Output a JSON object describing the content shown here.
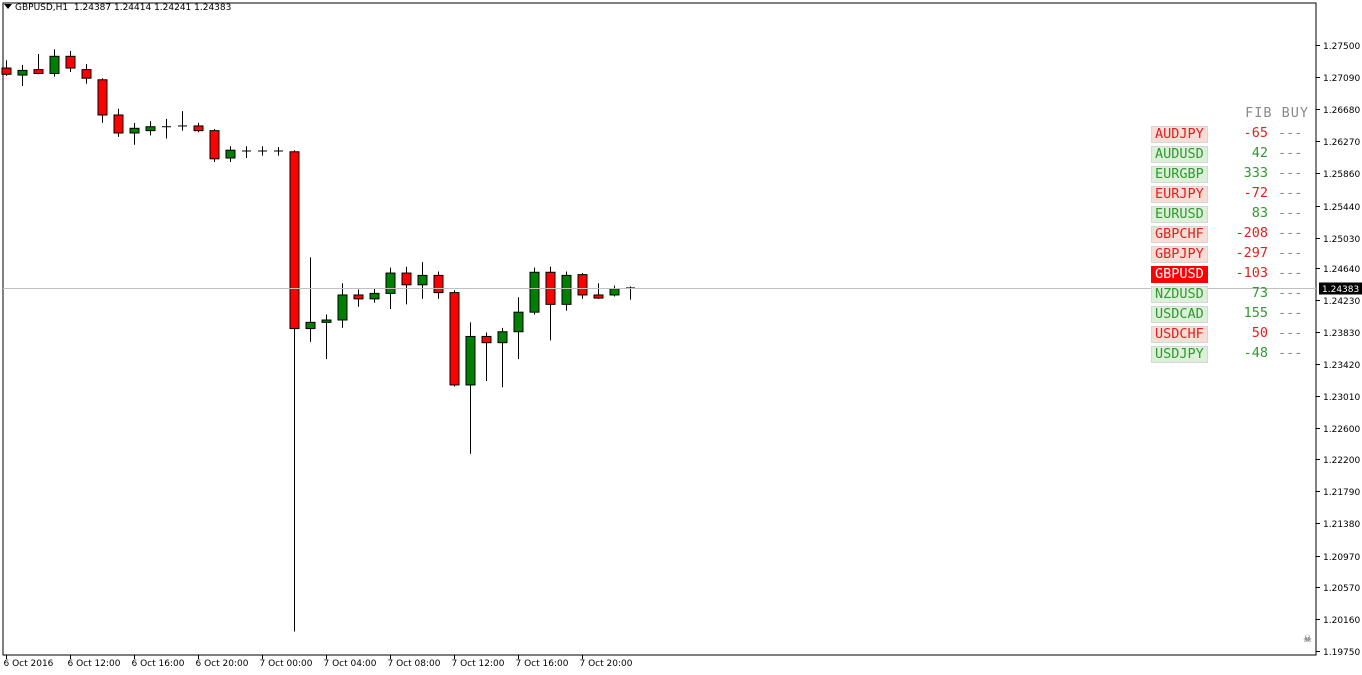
{
  "header": {
    "symbol_tf": "GBPUSD,H1",
    "ohlc": "1.24387 1.24414 1.24241 1.24383"
  },
  "panel": {
    "title": "FIB BUY",
    "rows": [
      {
        "symbol": "AUDJPY",
        "value": "-65",
        "dash": "---",
        "state": "dn"
      },
      {
        "symbol": "AUDUSD",
        "value": "42",
        "dash": "---",
        "state": "up"
      },
      {
        "symbol": "EURGBP",
        "value": "333",
        "dash": "---",
        "state": "up"
      },
      {
        "symbol": "EURJPY",
        "value": "-72",
        "dash": "---",
        "state": "dn"
      },
      {
        "symbol": "EURUSD",
        "value": "83",
        "dash": "---",
        "state": "up"
      },
      {
        "symbol": "GBPCHF",
        "value": "-208",
        "dash": "---",
        "state": "dn"
      },
      {
        "symbol": "GBPJPY",
        "value": "-297",
        "dash": "---",
        "state": "dn"
      },
      {
        "symbol": "GBPUSD",
        "value": "-103",
        "dash": "---",
        "state": "sel"
      },
      {
        "symbol": "NZDUSD",
        "value": "73",
        "dash": "---",
        "state": "up"
      },
      {
        "symbol": "USDCAD",
        "value": "155",
        "dash": "---",
        "state": "up"
      },
      {
        "symbol": "USDCHF",
        "value": "50",
        "dash": "---",
        "state": "dn"
      },
      {
        "symbol": "USDJPY",
        "value": "-48",
        "dash": "---",
        "state": "up"
      }
    ]
  },
  "chart_data": {
    "type": "candlestick",
    "symbol": "GBPUSD",
    "timeframe": "H1",
    "ylim": [
      1.1975,
      1.2775
    ],
    "yticks": [
      "1.27500",
      "1.27090",
      "1.26680",
      "1.26270",
      "1.25860",
      "1.25440",
      "1.25030",
      "1.24640",
      "1.24230",
      "1.23830",
      "1.23420",
      "1.23010",
      "1.22600",
      "1.22200",
      "1.21790",
      "1.21380",
      "1.20970",
      "1.20570",
      "1.20160",
      "1.19750"
    ],
    "current_price": "1.24383",
    "current_price_value": 1.24383,
    "xticks": [
      {
        "label": "6 Oct 2016",
        "bar": 0
      },
      {
        "label": "6 Oct 12:00",
        "bar": 4
      },
      {
        "label": "6 Oct 16:00",
        "bar": 8
      },
      {
        "label": "6 Oct 20:00",
        "bar": 12
      },
      {
        "label": "7 Oct 00:00",
        "bar": 16
      },
      {
        "label": "7 Oct 04:00",
        "bar": 20
      },
      {
        "label": "7 Oct 08:00",
        "bar": 24
      },
      {
        "label": "7 Oct 12:00",
        "bar": 28
      },
      {
        "label": "7 Oct 16:00",
        "bar": 32
      },
      {
        "label": "7 Oct 20:00",
        "bar": 36
      }
    ],
    "bull_color": "#008000",
    "bear_color": "#ff0000",
    "candles": [
      {
        "o": 1.272,
        "h": 1.273,
        "l": 1.271,
        "c": 1.2712
      },
      {
        "o": 1.2711,
        "h": 1.2724,
        "l": 1.2697,
        "c": 1.2717
      },
      {
        "o": 1.2718,
        "h": 1.2738,
        "l": 1.2712,
        "c": 1.2713
      },
      {
        "o": 1.2713,
        "h": 1.2744,
        "l": 1.2709,
        "c": 1.2735
      },
      {
        "o": 1.2735,
        "h": 1.2742,
        "l": 1.2715,
        "c": 1.272
      },
      {
        "o": 1.2718,
        "h": 1.2725,
        "l": 1.27,
        "c": 1.2707
      },
      {
        "o": 1.2705,
        "h": 1.2707,
        "l": 1.265,
        "c": 1.266
      },
      {
        "o": 1.266,
        "h": 1.2668,
        "l": 1.2632,
        "c": 1.2637
      },
      {
        "o": 1.2637,
        "h": 1.265,
        "l": 1.2622,
        "c": 1.2643
      },
      {
        "o": 1.264,
        "h": 1.2652,
        "l": 1.2634,
        "c": 1.2645
      },
      {
        "o": 1.2644,
        "h": 1.2655,
        "l": 1.263,
        "c": 1.2645
      },
      {
        "o": 1.2645,
        "h": 1.2665,
        "l": 1.264,
        "c": 1.2646
      },
      {
        "o": 1.2646,
        "h": 1.265,
        "l": 1.2638,
        "c": 1.264
      },
      {
        "o": 1.264,
        "h": 1.2642,
        "l": 1.26,
        "c": 1.2604
      },
      {
        "o": 1.2605,
        "h": 1.262,
        "l": 1.26,
        "c": 1.2615
      },
      {
        "o": 1.2613,
        "h": 1.262,
        "l": 1.2605,
        "c": 1.2614
      },
      {
        "o": 1.2614,
        "h": 1.262,
        "l": 1.2608,
        "c": 1.2614
      },
      {
        "o": 1.2614,
        "h": 1.2619,
        "l": 1.2608,
        "c": 1.2613
      },
      {
        "o": 1.2613,
        "h": 1.2615,
        "l": 1.2,
        "c": 1.2387
      },
      {
        "o": 1.2387,
        "h": 1.2478,
        "l": 1.237,
        "c": 1.2395
      },
      {
        "o": 1.2395,
        "h": 1.2405,
        "l": 1.2348,
        "c": 1.2398
      },
      {
        "o": 1.2398,
        "h": 1.2445,
        "l": 1.2388,
        "c": 1.243
      },
      {
        "o": 1.243,
        "h": 1.2437,
        "l": 1.2415,
        "c": 1.2425
      },
      {
        "o": 1.2425,
        "h": 1.2438,
        "l": 1.242,
        "c": 1.2432
      },
      {
        "o": 1.2432,
        "h": 1.2465,
        "l": 1.2412,
        "c": 1.2458
      },
      {
        "o": 1.2458,
        "h": 1.2466,
        "l": 1.2418,
        "c": 1.2443
      },
      {
        "o": 1.2443,
        "h": 1.2472,
        "l": 1.2425,
        "c": 1.2455
      },
      {
        "o": 1.2455,
        "h": 1.246,
        "l": 1.2425,
        "c": 1.2433
      },
      {
        "o": 1.2433,
        "h": 1.2436,
        "l": 1.2313,
        "c": 1.2315
      },
      {
        "o": 1.2315,
        "h": 1.2395,
        "l": 1.2227,
        "c": 1.2377
      },
      {
        "o": 1.2377,
        "h": 1.2382,
        "l": 1.232,
        "c": 1.2369
      },
      {
        "o": 1.2369,
        "h": 1.2388,
        "l": 1.2312,
        "c": 1.2383
      },
      {
        "o": 1.2383,
        "h": 1.2427,
        "l": 1.2348,
        "c": 1.2408
      },
      {
        "o": 1.2408,
        "h": 1.2465,
        "l": 1.2405,
        "c": 1.2459
      },
      {
        "o": 1.2459,
        "h": 1.2466,
        "l": 1.2372,
        "c": 1.2418
      },
      {
        "o": 1.2418,
        "h": 1.246,
        "l": 1.241,
        "c": 1.2455
      },
      {
        "o": 1.2456,
        "h": 1.2458,
        "l": 1.2425,
        "c": 1.243
      },
      {
        "o": 1.243,
        "h": 1.2445,
        "l": 1.2425,
        "c": 1.2426
      },
      {
        "o": 1.243,
        "h": 1.2442,
        "l": 1.2428,
        "c": 1.2438
      },
      {
        "o": 1.2439,
        "h": 1.2441,
        "l": 1.2424,
        "c": 1.2438
      }
    ]
  }
}
